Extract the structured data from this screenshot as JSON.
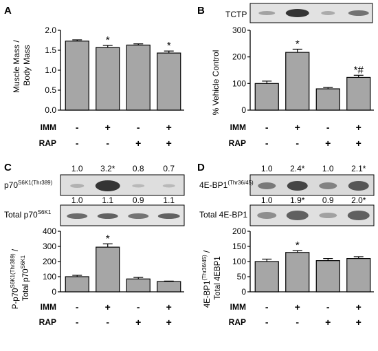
{
  "chart_data": [
    {
      "panel": "A",
      "type": "bar",
      "ylabel_lines": [
        "Muscle Mass /",
        "Body Mass"
      ],
      "ylim": [
        0,
        2.0
      ],
      "yticks": [
        "0.0",
        "0.5",
        "1.0",
        "1.5",
        "2.0"
      ],
      "yticks_values": [
        0,
        0.5,
        1.0,
        1.5,
        2.0
      ],
      "values": [
        1.73,
        1.57,
        1.63,
        1.43
      ],
      "errors": [
        0.03,
        0.05,
        0.03,
        0.05
      ],
      "markers": [
        "",
        "*",
        "",
        "*"
      ],
      "conditions": {
        "IMM": [
          "-",
          "+",
          "-",
          "+"
        ],
        "RAP": [
          "-",
          "-",
          "+",
          "+"
        ]
      }
    },
    {
      "panel": "B",
      "type": "bar",
      "blot_label": "TCTP",
      "ylabel": "% Vehicle Control",
      "ylim": [
        0,
        300
      ],
      "yticks": [
        "0",
        "100",
        "200",
        "300"
      ],
      "yticks_values": [
        0,
        100,
        200,
        300
      ],
      "values": [
        100,
        217,
        80,
        123
      ],
      "errors": [
        9,
        12,
        5,
        8
      ],
      "markers": [
        "",
        "*",
        "",
        "*#"
      ],
      "conditions": {
        "IMM": [
          "-",
          "+",
          "-",
          "+"
        ],
        "RAP": [
          "-",
          "-",
          "+",
          "+"
        ]
      }
    },
    {
      "panel": "C",
      "type": "bar",
      "blot1_label": "p70",
      "blot1_label_sup": "S6K1(Thr389)",
      "blot1_values": [
        "1.0",
        "3.2*",
        "0.8",
        "0.7"
      ],
      "blot2_label": "Total p70",
      "blot2_label_sup": "S6K1",
      "blot2_values": [
        "1.0",
        "1.1",
        "0.9",
        "1.1"
      ],
      "ylabel_line1": {
        "main": "P-p70",
        "sup": "S6K1(Thr389)",
        "tail": " /"
      },
      "ylabel_line2": {
        "main": "Total p70",
        "sup": "S6K1"
      },
      "ylim": [
        0,
        400
      ],
      "yticks": [
        "0",
        "100",
        "200",
        "300",
        "400"
      ],
      "yticks_values": [
        0,
        100,
        200,
        300,
        400
      ],
      "values": [
        100,
        295,
        85,
        68
      ],
      "errors": [
        9,
        22,
        10,
        3
      ],
      "markers": [
        "",
        "*",
        "",
        ""
      ],
      "conditions": {
        "IMM": [
          "-",
          "+",
          "-",
          "+"
        ],
        "RAP": [
          "-",
          "-",
          "+",
          "+"
        ]
      }
    },
    {
      "panel": "D",
      "type": "bar",
      "blot1_label": "4E-BP1",
      "blot1_label_sup": "(Thr36/45)",
      "blot1_values": [
        "1.0",
        "2.4*",
        "1.0",
        "2.1*"
      ],
      "blot2_label": "Total 4E-BP1",
      "blot2_values": [
        "1.0",
        "1.9*",
        "0.9",
        "2.0*"
      ],
      "ylabel_line1": {
        "main": "4E-BP1",
        "sup": "(Thr36/45)",
        "tail": " /"
      },
      "ylabel_line2": {
        "main": "Total 4EBP1",
        "sup": ""
      },
      "ylim": [
        0,
        200
      ],
      "yticks": [
        "0",
        "50",
        "100",
        "150",
        "200"
      ],
      "yticks_values": [
        0,
        50,
        100,
        150,
        200
      ],
      "values": [
        100,
        130,
        103,
        110
      ],
      "errors": [
        8,
        6,
        7,
        6
      ],
      "markers": [
        "",
        "*",
        "",
        ""
      ],
      "conditions": {
        "IMM": [
          "-",
          "+",
          "-",
          "+"
        ],
        "RAP": [
          "-",
          "-",
          "+",
          "+"
        ]
      }
    }
  ],
  "colors": {
    "bar": "#a6a6a6",
    "axis": "#000000",
    "blot_bg": "#dcdcdc",
    "band": "#2a2a2a"
  }
}
